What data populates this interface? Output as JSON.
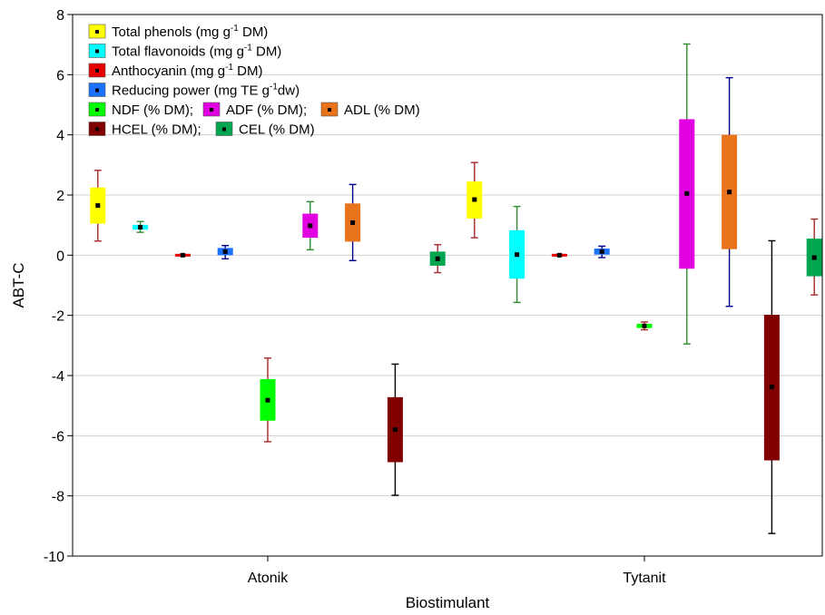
{
  "chart_data": {
    "type": "box",
    "xlabel": "Biostimulant",
    "ylabel": "ABT-C",
    "ylim": [
      -10,
      8
    ],
    "yticks": [
      "-10",
      "-8",
      "-6",
      "-4",
      "-2",
      "0",
      "2",
      "4",
      "6",
      "8"
    ],
    "grid": "horizontal",
    "legend_position": "top-left",
    "categories": [
      "Atonik",
      "Tytanit"
    ],
    "legend": [
      {
        "label": "Total phenols (mg g",
        "sup": "-1",
        "after": " DM)",
        "color": "#ffff00"
      },
      {
        "label": "Total flavonoids (mg g",
        "sup": "-1",
        "after": " DM)",
        "color": "#00ffff"
      },
      {
        "label": "Anthocyanin (mg g",
        "sup": "-1",
        "after": " DM)",
        "color": "#e60000"
      },
      {
        "label": "Reducing power (mg TE g",
        "sup": "-1",
        "after": "dw)",
        "color": "#1a72ff"
      },
      {
        "label": "NDF (% DM);",
        "sup": "",
        "after": "",
        "color": "#00ff00"
      },
      {
        "label": "ADF (% DM);",
        "sup": "",
        "after": "",
        "color": "#e000e0"
      },
      {
        "label": "ADL (% DM)",
        "sup": "",
        "after": "",
        "color": "#e8731a"
      },
      {
        "label": "HCEL (% DM);",
        "sup": "",
        "after": "",
        "color": "#800000"
      },
      {
        "label": "CEL (% DM)",
        "sup": "",
        "after": "",
        "color": "#00a550"
      }
    ],
    "series": [
      {
        "name": "Total phenols",
        "color": "#ffff00",
        "whisker_color": "#a52a2a",
        "values": [
          {
            "mean": 1.65,
            "q1": 1.05,
            "q3": 2.25,
            "min": 0.47,
            "max": 2.82
          },
          {
            "mean": 1.85,
            "q1": 1.22,
            "q3": 2.45,
            "min": 0.58,
            "max": 3.08
          }
        ]
      },
      {
        "name": "Total flavonoids",
        "color": "#00ffff",
        "whisker_color": "#2e8b2e",
        "values": [
          {
            "mean": 0.93,
            "q1": 0.85,
            "q3": 1.01,
            "min": 0.76,
            "max": 1.12
          },
          {
            "mean": 0.02,
            "q1": -0.78,
            "q3": 0.83,
            "min": -1.57,
            "max": 1.62
          }
        ]
      },
      {
        "name": "Anthocyanin",
        "color": "#e60000",
        "whisker_color": "#a52a2a",
        "values": [
          {
            "mean": 0.0,
            "q1": -0.02,
            "q3": 0.02,
            "min": -0.03,
            "max": 0.03
          },
          {
            "mean": 0.0,
            "q1": -0.02,
            "q3": 0.02,
            "min": -0.03,
            "max": 0.03
          }
        ]
      },
      {
        "name": "Reducing power",
        "color": "#1a72ff",
        "whisker_color": "#00008b",
        "values": [
          {
            "mean": 0.12,
            "q1": 0.0,
            "q3": 0.24,
            "min": -0.12,
            "max": 0.32
          },
          {
            "mean": 0.12,
            "q1": 0.02,
            "q3": 0.22,
            "min": -0.08,
            "max": 0.3
          }
        ]
      },
      {
        "name": "NDF",
        "color": "#00ff00",
        "whisker_color": "#a52a2a",
        "values": [
          {
            "mean": -4.82,
            "q1": -5.5,
            "q3": -4.12,
            "min": -6.2,
            "max": -3.42
          },
          {
            "mean": -2.35,
            "q1": -2.42,
            "q3": -2.28,
            "min": -2.48,
            "max": -2.22
          }
        ]
      },
      {
        "name": "ADF",
        "color": "#e000e0",
        "whisker_color": "#2e8b2e",
        "values": [
          {
            "mean": 0.98,
            "q1": 0.58,
            "q3": 1.38,
            "min": 0.18,
            "max": 1.78
          },
          {
            "mean": 2.05,
            "q1": -0.45,
            "q3": 4.52,
            "min": -2.95,
            "max": 7.02
          }
        ]
      },
      {
        "name": "ADL",
        "color": "#e8731a",
        "whisker_color": "#00008b",
        "values": [
          {
            "mean": 1.08,
            "q1": 0.45,
            "q3": 1.72,
            "min": -0.18,
            "max": 2.35
          },
          {
            "mean": 2.1,
            "q1": 0.2,
            "q3": 4.0,
            "min": -1.7,
            "max": 5.9
          }
        ]
      },
      {
        "name": "HCEL",
        "color": "#800000",
        "whisker_color": "#000000",
        "values": [
          {
            "mean": -5.8,
            "q1": -6.88,
            "q3": -4.72,
            "min": -7.98,
            "max": -3.62
          },
          {
            "mean": -4.38,
            "q1": -6.82,
            "q3": -1.98,
            "min": -9.25,
            "max": 0.48
          }
        ]
      },
      {
        "name": "CEL",
        "color": "#00a550",
        "whisker_color": "#a52a2a",
        "values": [
          {
            "mean": -0.12,
            "q1": -0.35,
            "q3": 0.12,
            "min": -0.58,
            "max": 0.35
          },
          {
            "mean": -0.08,
            "q1": -0.7,
            "q3": 0.55,
            "min": -1.32,
            "max": 1.2
          }
        ]
      }
    ]
  }
}
